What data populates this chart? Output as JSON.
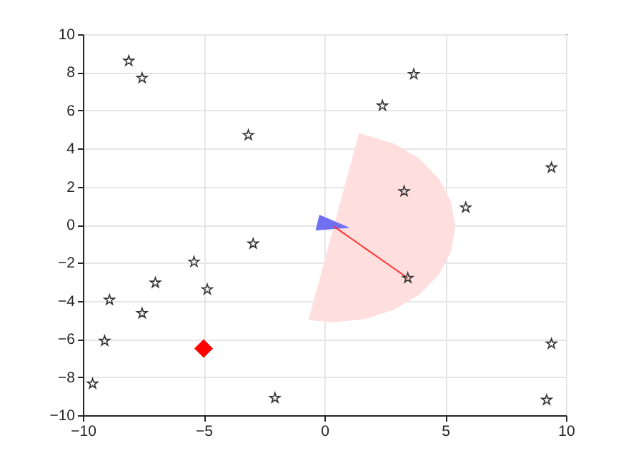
{
  "chart_data": {
    "type": "scatter",
    "xlim": [
      -10,
      10
    ],
    "xticks": [
      -10,
      -5,
      0,
      5,
      10
    ],
    "ylim": [
      -10,
      10
    ],
    "yticks": [
      -10,
      -8,
      -6,
      -4,
      -2,
      0,
      2,
      4,
      6,
      8,
      10
    ],
    "grid": true,
    "series": [
      {
        "type": "area",
        "color": "#ffdede",
        "x": [
          0.4,
          1.44,
          2.9,
          3.94,
          4.73,
          5.23,
          5.4,
          5.23,
          4.73,
          3.94,
          2.9,
          1.69,
          0.4,
          -0.64
        ],
        "values": [
          -0.1,
          4.79,
          4.23,
          3.44,
          2.4,
          1.19,
          -0.1,
          -1.39,
          -2.6,
          -3.64,
          -4.43,
          -4.93,
          -5.1,
          -4.99
        ]
      },
      {
        "type": "area",
        "color": "#7070f0",
        "x": [
          -0.35,
          -0.2,
          1.0
        ],
        "values": [
          -0.28,
          0.5,
          -0.15
        ]
      },
      {
        "type": "line",
        "color": "#ff3333",
        "x": [
          0.4,
          3.45
        ],
        "values": [
          -0.1,
          -2.8
        ]
      },
      {
        "type": "scatter",
        "marker": "star",
        "color": "#333333",
        "x": [
          -8.1,
          -7.55,
          -3.15,
          -2.95,
          -5.4,
          -4.85,
          -7.0,
          -8.9,
          -7.55,
          -9.1,
          -9.6,
          -2.05,
          3.7,
          2.4,
          3.3,
          5.85,
          9.4,
          3.45,
          9.4,
          9.2
        ],
        "values": [
          8.6,
          7.7,
          4.7,
          -1.0,
          -1.95,
          -3.4,
          -3.05,
          -3.95,
          -4.65,
          -6.1,
          -8.35,
          -9.1,
          7.9,
          6.25,
          1.75,
          0.9,
          3.0,
          -2.8,
          -6.25,
          -9.2
        ]
      },
      {
        "type": "scatter",
        "marker": "diamond",
        "color": "#ff0000",
        "x": [
          -5
        ],
        "values": [
          -6.5
        ]
      }
    ]
  }
}
